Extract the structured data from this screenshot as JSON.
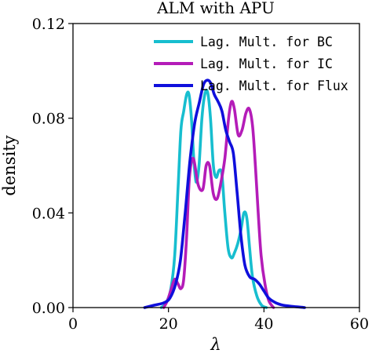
{
  "chart_data": {
    "type": "line",
    "title": "ALM with APU",
    "xlabel": "λ",
    "ylabel": "density",
    "xlim": [
      0,
      60
    ],
    "ylim": [
      0,
      0.12
    ],
    "x_ticks": [
      "0",
      "20",
      "40",
      "60"
    ],
    "y_ticks": [
      "0.00",
      "0.04",
      "0.08",
      "0.12"
    ],
    "grid": false,
    "legend_position": "top-right",
    "series": [
      {
        "name": "Lag. Mult. for BC",
        "color": "#17BECF",
        "points": [
          [
            18.5,
            0
          ],
          [
            19.5,
            0.002
          ],
          [
            20.5,
            0.008
          ],
          [
            21.3,
            0.022
          ],
          [
            22,
            0.05
          ],
          [
            22.6,
            0.075
          ],
          [
            23.2,
            0.083
          ],
          [
            23.8,
            0.09
          ],
          [
            24.3,
            0.09
          ],
          [
            24.8,
            0.08
          ],
          [
            25.3,
            0.063
          ],
          [
            25.8,
            0.053
          ],
          [
            26.4,
            0.06
          ],
          [
            27,
            0.08
          ],
          [
            27.6,
            0.09
          ],
          [
            28.2,
            0.091
          ],
          [
            28.8,
            0.08
          ],
          [
            29.4,
            0.06
          ],
          [
            30,
            0.055
          ],
          [
            30.6,
            0.058
          ],
          [
            31.2,
            0.056
          ],
          [
            31.8,
            0.04
          ],
          [
            32.5,
            0.025
          ],
          [
            33.2,
            0.021
          ],
          [
            33.8,
            0.023
          ],
          [
            34.5,
            0.027
          ],
          [
            35.2,
            0.033
          ],
          [
            35.8,
            0.04
          ],
          [
            36.4,
            0.038
          ],
          [
            37,
            0.025
          ],
          [
            37.6,
            0.013
          ],
          [
            38.5,
            0.005
          ],
          [
            39.5,
            0.001
          ],
          [
            40.5,
            0
          ]
        ]
      },
      {
        "name": "Lag. Mult. for IC",
        "color": "#B41CB8",
        "points": [
          [
            19,
            0
          ],
          [
            19.8,
            0.003
          ],
          [
            20.6,
            0.008
          ],
          [
            21.3,
            0.012
          ],
          [
            22,
            0.01
          ],
          [
            22.6,
            0.008
          ],
          [
            23.2,
            0.012
          ],
          [
            23.8,
            0.03
          ],
          [
            24.4,
            0.055
          ],
          [
            25.2,
            0.063
          ],
          [
            26.2,
            0.052
          ],
          [
            27.2,
            0.05
          ],
          [
            27.9,
            0.06
          ],
          [
            28.6,
            0.06
          ],
          [
            29.4,
            0.048
          ],
          [
            30.2,
            0.046
          ],
          [
            31,
            0.053
          ],
          [
            31.8,
            0.063
          ],
          [
            32.6,
            0.08
          ],
          [
            33.2,
            0.087
          ],
          [
            33.8,
            0.084
          ],
          [
            34.6,
            0.073
          ],
          [
            35.4,
            0.075
          ],
          [
            36.2,
            0.082
          ],
          [
            36.9,
            0.084
          ],
          [
            37.6,
            0.077
          ],
          [
            38.2,
            0.06
          ],
          [
            38.8,
            0.04
          ],
          [
            39.4,
            0.022
          ],
          [
            40.2,
            0.01
          ],
          [
            41,
            0.003
          ],
          [
            42,
            0
          ]
        ]
      },
      {
        "name": "Lag. Mult. for Flux",
        "color": "#0F0FDC",
        "points": [
          [
            15,
            0
          ],
          [
            17,
            0.001
          ],
          [
            19,
            0.002
          ],
          [
            20.3,
            0.004
          ],
          [
            21.5,
            0.01
          ],
          [
            22.5,
            0.02
          ],
          [
            23.5,
            0.04
          ],
          [
            24.5,
            0.062
          ],
          [
            25.5,
            0.078
          ],
          [
            26.5,
            0.087
          ],
          [
            27.3,
            0.094
          ],
          [
            28,
            0.096
          ],
          [
            28.8,
            0.095
          ],
          [
            29.6,
            0.09
          ],
          [
            30.4,
            0.087
          ],
          [
            31.2,
            0.083
          ],
          [
            32,
            0.075
          ],
          [
            32.8,
            0.07
          ],
          [
            33.6,
            0.065
          ],
          [
            34.4,
            0.048
          ],
          [
            35.2,
            0.03
          ],
          [
            36,
            0.018
          ],
          [
            37,
            0.013
          ],
          [
            38,
            0.012
          ],
          [
            39,
            0.01
          ],
          [
            40,
            0.007
          ],
          [
            41,
            0.004
          ],
          [
            42.5,
            0.002
          ],
          [
            44,
            0.001
          ],
          [
            46,
            0.0005
          ],
          [
            48.5,
            0
          ]
        ]
      }
    ]
  }
}
